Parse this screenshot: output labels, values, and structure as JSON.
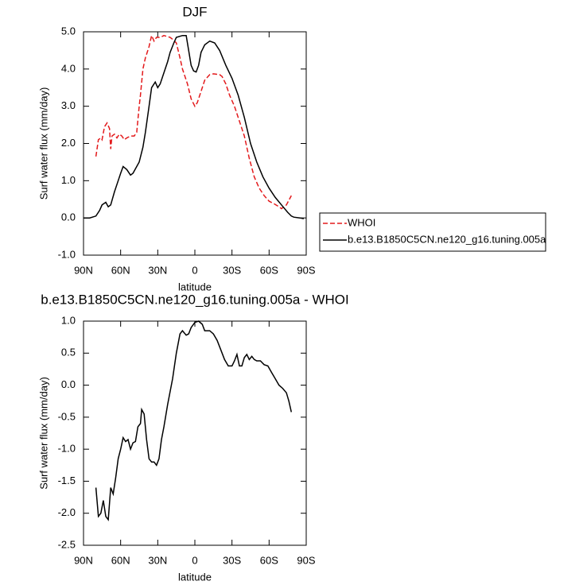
{
  "chart_data": [
    {
      "type": "line",
      "title": "DJF",
      "xlabel": "latitude",
      "ylabel": "Surf water flux (mm/day)",
      "xlim": [
        90,
        -90
      ],
      "xticks": [
        {
          "value": 90,
          "label": "90N"
        },
        {
          "value": 60,
          "label": "60N"
        },
        {
          "value": 30,
          "label": "30N"
        },
        0,
        {
          "value": -30,
          "label": "30S"
        },
        {
          "value": -60,
          "label": "60S"
        },
        {
          "value": -90,
          "label": "90S"
        }
      ],
      "ylim": [
        -1,
        5
      ],
      "yticks": [
        {
          "value": -1,
          "label": "-1.0"
        },
        {
          "value": 0,
          "label": "0.0"
        },
        {
          "value": 1,
          "label": "1.0"
        },
        {
          "value": 2,
          "label": "2.0"
        },
        {
          "value": 3,
          "label": "3.0"
        },
        {
          "value": 4,
          "label": "4.0"
        },
        {
          "value": 5,
          "label": "5.0"
        }
      ],
      "legend": "lower right outside",
      "series": [
        {
          "name": "WHOI",
          "color": "#e31a1c",
          "dashed": true,
          "x": [
            80,
            78,
            76,
            75,
            73,
            71,
            69,
            68,
            67,
            65,
            63,
            61,
            59,
            57,
            55,
            52,
            49,
            47,
            45,
            44,
            42,
            40,
            37,
            35,
            33,
            31,
            28,
            25,
            20,
            18,
            15,
            12,
            10,
            6,
            3,
            0,
            -2,
            -5,
            -8,
            -12,
            -15,
            -20,
            -22,
            -25,
            -28,
            -32,
            -36,
            -40,
            -44,
            -48,
            -52,
            -56,
            -60,
            -64,
            -68,
            -70,
            -74,
            -78
          ],
          "values": [
            1.65,
            2.1,
            2.15,
            2.1,
            2.45,
            2.55,
            2.4,
            1.85,
            2.2,
            2.25,
            2.15,
            2.25,
            2.2,
            2.1,
            2.15,
            2.2,
            2.2,
            2.3,
            3.0,
            3.3,
            4.0,
            4.3,
            4.6,
            4.9,
            4.75,
            4.85,
            4.85,
            4.9,
            4.85,
            4.8,
            4.7,
            4.3,
            4.0,
            3.6,
            3.2,
            3.0,
            3.1,
            3.4,
            3.7,
            3.85,
            3.87,
            3.85,
            3.8,
            3.6,
            3.3,
            3.0,
            2.6,
            2.2,
            1.6,
            1.1,
            0.8,
            0.6,
            0.45,
            0.38,
            0.3,
            0.25,
            0.35,
            0.6
          ]
        },
        {
          "name": "b.e13.B1850C5CN.ne120_g16.tuning.005a",
          "color": "#000000",
          "dashed": false,
          "x": [
            90,
            85,
            80,
            77,
            75,
            72,
            70,
            68,
            65,
            62,
            60,
            58,
            55,
            52,
            50,
            45,
            42,
            40,
            37,
            35,
            32,
            30,
            28,
            25,
            22,
            20,
            17,
            15,
            10,
            7,
            5,
            3,
            1,
            -1,
            -3,
            -5,
            -8,
            -12,
            -16,
            -20,
            -25,
            -30,
            -35,
            -40,
            -45,
            -50,
            -55,
            -60,
            -65,
            -70,
            -75,
            -78,
            -80,
            -85,
            -88
          ],
          "values": [
            0.0,
            0.0,
            0.05,
            0.2,
            0.35,
            0.42,
            0.3,
            0.35,
            0.7,
            1.0,
            1.2,
            1.38,
            1.3,
            1.15,
            1.2,
            1.5,
            1.9,
            2.3,
            3.0,
            3.5,
            3.65,
            3.5,
            3.6,
            3.9,
            4.2,
            4.45,
            4.7,
            4.85,
            4.9,
            4.9,
            4.5,
            4.1,
            3.95,
            3.92,
            4.1,
            4.45,
            4.65,
            4.75,
            4.7,
            4.5,
            4.1,
            3.75,
            3.3,
            2.7,
            2.0,
            1.5,
            1.1,
            0.8,
            0.55,
            0.35,
            0.15,
            0.05,
            0.02,
            0.0,
            -0.02
          ]
        }
      ]
    },
    {
      "type": "line",
      "title": "b.e13.B1850C5CN.ne120_g16.tuning.005a - WHOI",
      "xlabel": "latitude",
      "ylabel": "Surf water flux (mm/day)",
      "xlim": [
        90,
        -90
      ],
      "xticks": [
        {
          "value": 90,
          "label": "90N"
        },
        {
          "value": 60,
          "label": "60N"
        },
        {
          "value": 30,
          "label": "30N"
        },
        0,
        {
          "value": -30,
          "label": "30S"
        },
        {
          "value": -60,
          "label": "60S"
        },
        {
          "value": -90,
          "label": "90S"
        }
      ],
      "ylim": [
        -2.5,
        1
      ],
      "yticks": [
        -2.5,
        {
          "value": -2,
          "label": "-2.0"
        },
        -1.5,
        {
          "value": -1,
          "label": "-1.0"
        },
        -0.5,
        {
          "value": 0,
          "label": "0.0"
        },
        0.5,
        {
          "value": 1,
          "label": "1.0"
        }
      ],
      "series": [
        {
          "color": "#000000",
          "dashed": false,
          "x": [
            80,
            78,
            76,
            74,
            72,
            70,
            68,
            66,
            64,
            62,
            60,
            58,
            56,
            54,
            52,
            50,
            48,
            46,
            44,
            43,
            41,
            39,
            37,
            35,
            33,
            31,
            29,
            27,
            25,
            22,
            18,
            15,
            12,
            10,
            7,
            5,
            3,
            0,
            -3,
            -6,
            -8,
            -12,
            -15,
            -18,
            -21,
            -24,
            -27,
            -30,
            -32,
            -34,
            -36,
            -38,
            -40,
            -42,
            -44,
            -46,
            -48,
            -50,
            -53,
            -56,
            -59,
            -62,
            -65,
            -68,
            -71,
            -74,
            -76,
            -78
          ],
          "values": [
            -1.6,
            -2.05,
            -2.0,
            -1.8,
            -2.05,
            -2.1,
            -1.6,
            -1.7,
            -1.45,
            -1.15,
            -1.0,
            -0.82,
            -0.88,
            -0.85,
            -1.0,
            -0.9,
            -0.88,
            -0.65,
            -0.6,
            -0.38,
            -0.45,
            -0.85,
            -1.15,
            -1.2,
            -1.2,
            -1.25,
            -1.15,
            -0.85,
            -0.65,
            -0.3,
            0.1,
            0.5,
            0.8,
            0.85,
            0.78,
            0.8,
            0.9,
            0.98,
            1.0,
            0.95,
            0.85,
            0.85,
            0.8,
            0.7,
            0.55,
            0.4,
            0.3,
            0.3,
            0.38,
            0.48,
            0.3,
            0.3,
            0.43,
            0.48,
            0.4,
            0.45,
            0.4,
            0.38,
            0.38,
            0.32,
            0.3,
            0.2,
            0.1,
            0.0,
            -0.05,
            -0.12,
            -0.25,
            -0.42
          ]
        }
      ]
    }
  ]
}
